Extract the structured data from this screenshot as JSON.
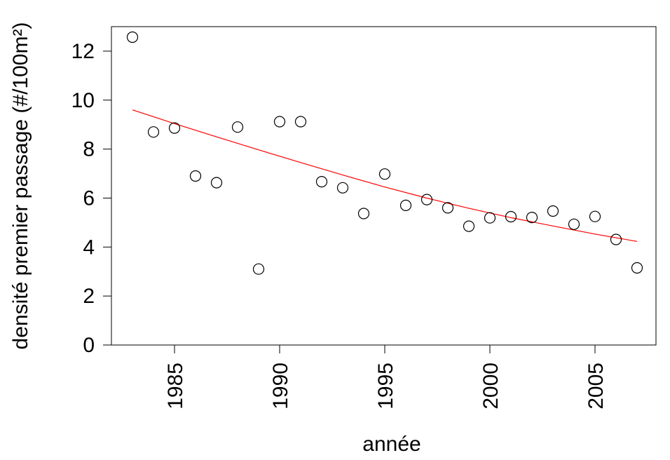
{
  "chart_data": {
    "type": "scatter",
    "title": "",
    "xlabel": "année",
    "ylabel": "densité premier passage (#/100m²)",
    "xlim": [
      1982.0,
      2007.9
    ],
    "ylim": [
      0,
      13
    ],
    "x_ticks": [
      1985,
      1990,
      1995,
      2000,
      2005
    ],
    "y_ticks": [
      0,
      2,
      4,
      6,
      8,
      10,
      12
    ],
    "grid": false,
    "colors": {
      "points": "#000000",
      "trend": "#ff0000"
    },
    "series": [
      {
        "kind": "points",
        "x": [
          1983,
          1984,
          1985,
          1986,
          1987,
          1988,
          1989,
          1990,
          1991,
          1992,
          1993,
          1994,
          1995,
          1996,
          1997,
          1998,
          1999,
          2000,
          2001,
          2002,
          2003,
          2004,
          2005,
          2006,
          2007
        ],
        "y": [
          12.57,
          8.7,
          8.86,
          6.9,
          6.63,
          8.9,
          3.1,
          9.12,
          9.12,
          6.67,
          6.42,
          5.37,
          6.98,
          5.7,
          5.94,
          5.6,
          4.85,
          5.19,
          5.24,
          5.21,
          5.47,
          4.93,
          5.25,
          4.31,
          3.15
        ]
      },
      {
        "kind": "trend",
        "x": [
          1983,
          1985,
          1987,
          1989,
          1991,
          1993,
          1995,
          1997,
          1999,
          2001,
          2003,
          2005,
          2007
        ],
        "y": [
          9.6,
          9.04,
          8.5,
          7.97,
          7.45,
          6.94,
          6.45,
          6.0,
          5.58,
          5.2,
          4.86,
          4.53,
          4.23
        ]
      }
    ]
  }
}
